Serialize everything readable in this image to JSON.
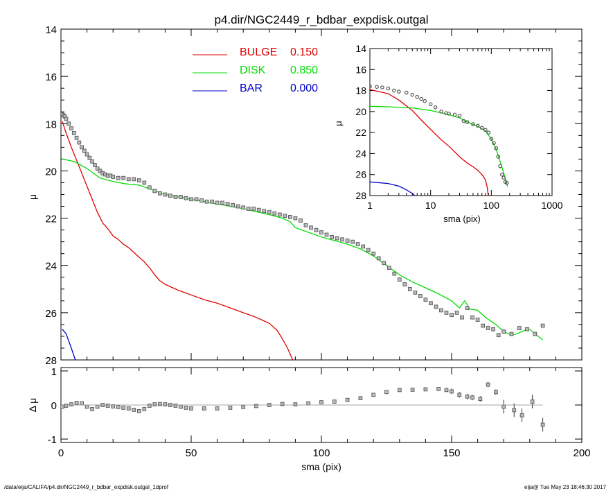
{
  "footer": {
    "path": "/data/eija/CALIFA/p4.dir/NGC2449_r_bdbar_expdisk.outgal_1dprof",
    "stamp": "eija@  Tue May 23 18:46:30 2017"
  },
  "chart_data": [
    {
      "type": "line",
      "title": "p4.dir/NGC2449_r_bdbar_expdisk.outgal",
      "xlabel": "",
      "ylabel": "μ",
      "xlim": [
        0,
        200
      ],
      "ylim": [
        28,
        14
      ],
      "yticks": [
        "14",
        "16",
        "18",
        "20",
        "22",
        "24",
        "26",
        "28"
      ],
      "legend_position": "top-center",
      "legend": [
        {
          "name": "BULGE",
          "value": "0.150",
          "color": "#dd0000"
        },
        {
          "name": "DISK",
          "value": "0.850",
          "color": "#00dd00"
        },
        {
          "name": "BAR",
          "value": "0.000",
          "color": "#0000cc"
        }
      ],
      "series": [
        {
          "name": "BULGE",
          "color": "#dd0000",
          "x": [
            0.5,
            2,
            4,
            6,
            8,
            10,
            12,
            14,
            16,
            18,
            20,
            22,
            24,
            26,
            28,
            30,
            32,
            34,
            36,
            38,
            40,
            45,
            50,
            55,
            60,
            65,
            70,
            75,
            80,
            83,
            85,
            87,
            89
          ],
          "y": [
            17.9,
            18.4,
            19.0,
            19.55,
            20.1,
            20.65,
            21.2,
            21.75,
            22.2,
            22.45,
            22.75,
            22.9,
            23.1,
            23.25,
            23.45,
            23.65,
            23.85,
            24.1,
            24.4,
            24.65,
            24.8,
            25.05,
            25.25,
            25.45,
            25.6,
            25.8,
            26.0,
            26.2,
            26.45,
            26.75,
            27.1,
            27.5,
            28.0
          ]
        },
        {
          "name": "DISK",
          "color": "#00dd00",
          "x": [
            0.5,
            5,
            10,
            15,
            20,
            25,
            30,
            35,
            40,
            50,
            60,
            70,
            80,
            85,
            88,
            90,
            95,
            100,
            105,
            110,
            115,
            120,
            125,
            130,
            135,
            140,
            145,
            150,
            153,
            155,
            157,
            160,
            163,
            165,
            167,
            170,
            173,
            175,
            178,
            180,
            182,
            185
          ],
          "y": [
            19.5,
            19.6,
            19.9,
            20.3,
            20.45,
            20.55,
            20.6,
            20.8,
            21.0,
            21.2,
            21.4,
            21.6,
            21.85,
            22.0,
            22.15,
            22.4,
            22.6,
            22.8,
            22.95,
            23.1,
            23.3,
            23.6,
            24.0,
            24.4,
            24.7,
            24.95,
            25.2,
            25.5,
            25.8,
            25.5,
            25.85,
            25.9,
            26.2,
            26.35,
            26.5,
            26.8,
            26.95,
            26.9,
            26.75,
            26.7,
            26.9,
            27.15
          ]
        },
        {
          "name": "BAR",
          "color": "#0000cc",
          "x": [
            0.5,
            2,
            4,
            5.5
          ],
          "y": [
            26.7,
            26.9,
            27.5,
            28.0
          ]
        },
        {
          "name": "data",
          "color": "#555555",
          "marker": "square",
          "x": [
            0.5,
            1,
            1.5,
            2,
            3,
            4,
            5,
            6,
            7,
            8,
            9,
            10,
            11,
            12,
            13,
            14,
            15,
            16,
            17,
            18,
            19,
            20,
            22,
            24,
            26,
            28,
            30,
            32,
            34,
            36,
            38,
            40,
            42,
            44,
            46,
            48,
            50,
            52,
            54,
            56,
            58,
            60,
            62,
            64,
            66,
            68,
            70,
            72,
            74,
            76,
            78,
            80,
            82,
            84,
            86,
            88,
            90,
            92,
            94,
            96,
            98,
            100,
            102,
            104,
            106,
            108,
            110,
            112,
            114,
            116,
            118,
            120,
            122,
            124,
            126,
            128,
            130,
            132,
            134,
            136,
            138,
            140,
            142,
            144,
            146,
            148,
            150,
            152,
            154,
            156,
            158,
            160,
            162,
            164,
            166,
            168,
            170,
            173,
            176,
            179,
            182,
            185
          ],
          "y": [
            17.6,
            17.65,
            17.7,
            17.8,
            18.0,
            18.2,
            18.4,
            18.6,
            18.8,
            19.0,
            19.15,
            19.3,
            19.45,
            19.6,
            19.75,
            19.9,
            20.0,
            20.1,
            20.15,
            20.2,
            20.2,
            20.25,
            20.3,
            20.3,
            20.35,
            20.35,
            20.4,
            20.5,
            20.7,
            20.85,
            20.95,
            21.0,
            21.05,
            21.1,
            21.1,
            21.15,
            21.2,
            21.2,
            21.25,
            21.3,
            21.3,
            21.35,
            21.35,
            21.4,
            21.45,
            21.5,
            21.55,
            21.6,
            21.6,
            21.65,
            21.7,
            21.75,
            21.8,
            21.85,
            21.9,
            21.95,
            22.0,
            22.1,
            22.3,
            22.4,
            22.5,
            22.6,
            22.7,
            22.8,
            22.85,
            22.9,
            22.95,
            23.0,
            23.1,
            23.2,
            23.35,
            23.5,
            23.7,
            23.9,
            24.1,
            24.35,
            24.6,
            24.8,
            25.0,
            25.15,
            25.3,
            25.45,
            25.6,
            25.75,
            25.9,
            26.0,
            26.1,
            26.0,
            26.2,
            25.8,
            26.2,
            26.3,
            26.55,
            26.65,
            26.7,
            26.95,
            26.8,
            26.9,
            26.65,
            26.7,
            26.9,
            26.55
          ]
        }
      ]
    },
    {
      "type": "line",
      "title": "",
      "xlabel": "sma (pix)",
      "ylabel": "μ",
      "xscale": "log",
      "xlim": [
        1,
        1000
      ],
      "ylim": [
        28,
        14
      ],
      "xticks": [
        "1",
        "10",
        "100",
        "1000"
      ],
      "yticks": [
        "14",
        "16",
        "18",
        "20",
        "22",
        "24",
        "26",
        "28"
      ],
      "position": "inset top-right",
      "series": [
        {
          "name": "BULGE",
          "color": "#dd0000",
          "x": [
            1,
            2,
            3,
            5,
            7,
            10,
            15,
            20,
            30,
            40,
            50,
            60,
            70,
            80,
            85,
            89
          ],
          "y": [
            17.9,
            18.3,
            18.9,
            19.9,
            20.8,
            21.7,
            22.7,
            23.3,
            24.3,
            24.9,
            25.25,
            25.6,
            26.0,
            26.5,
            27.1,
            28.0
          ]
        },
        {
          "name": "DISK",
          "color": "#00dd00",
          "x": [
            1,
            2,
            5,
            10,
            20,
            30,
            40,
            60,
            80,
            100,
            120,
            150,
            185
          ],
          "y": [
            19.5,
            19.55,
            19.65,
            19.9,
            20.3,
            20.6,
            21.0,
            21.4,
            21.85,
            22.6,
            23.6,
            25.3,
            27.15
          ]
        },
        {
          "name": "BAR",
          "color": "#0000cc",
          "x": [
            1,
            2,
            3,
            4,
            5,
            5.5
          ],
          "y": [
            26.7,
            26.85,
            27.1,
            27.45,
            27.8,
            28.0
          ]
        },
        {
          "name": "data",
          "color": "#555555",
          "marker": "circle",
          "x": [
            1,
            1.3,
            1.6,
            2,
            2.5,
            3,
            4,
            5,
            6,
            7,
            8,
            10,
            12,
            15,
            18,
            20,
            25,
            30,
            35,
            40,
            50,
            60,
            70,
            80,
            90,
            100,
            110,
            120,
            130,
            140,
            150,
            160,
            170,
            180
          ],
          "y": [
            17.6,
            17.65,
            17.7,
            17.8,
            18.0,
            18.1,
            18.2,
            18.4,
            18.6,
            18.8,
            19.0,
            19.3,
            19.6,
            20.0,
            20.15,
            20.2,
            20.3,
            20.4,
            20.9,
            21.0,
            21.2,
            21.35,
            21.55,
            21.75,
            22.0,
            22.6,
            23.0,
            23.5,
            24.3,
            25.2,
            26.0,
            26.3,
            26.7,
            26.8
          ]
        }
      ]
    },
    {
      "type": "scatter",
      "title": "",
      "xlabel": "sma (pix)",
      "ylabel": "Δ μ",
      "xlim": [
        0,
        200
      ],
      "ylim": [
        -1.1,
        1.1
      ],
      "xticks": [
        "0",
        "50",
        "100",
        "150",
        "200"
      ],
      "yticks": [
        "1",
        "0",
        "-1"
      ],
      "series": [
        {
          "name": "residual",
          "color": "#555555",
          "marker": "square",
          "x": [
            0.5,
            2,
            4,
            6,
            8,
            10,
            12,
            14,
            16,
            18,
            20,
            22,
            24,
            26,
            28,
            30,
            32,
            34,
            36,
            38,
            40,
            42,
            44,
            46,
            48,
            50,
            55,
            60,
            65,
            70,
            75,
            80,
            85,
            90,
            95,
            100,
            105,
            110,
            115,
            120,
            125,
            130,
            135,
            140,
            145,
            148,
            150,
            153,
            156,
            158,
            161,
            164,
            167,
            170,
            174,
            177,
            181,
            185
          ],
          "y": [
            -0.05,
            -0.02,
            0.02,
            0.06,
            0.05,
            -0.05,
            -0.12,
            -0.05,
            0.0,
            -0.02,
            -0.04,
            -0.06,
            -0.08,
            -0.1,
            -0.14,
            -0.18,
            -0.12,
            -0.02,
            0.02,
            0.03,
            0.02,
            0.0,
            -0.02,
            -0.05,
            -0.08,
            -0.1,
            -0.1,
            -0.1,
            -0.08,
            -0.06,
            -0.03,
            0.0,
            0.03,
            0.02,
            0.05,
            0.08,
            0.1,
            0.15,
            0.2,
            0.3,
            0.38,
            0.44,
            0.45,
            0.46,
            0.47,
            0.44,
            0.4,
            0.3,
            0.25,
            0.22,
            0.18,
            0.6,
            0.38,
            -0.05,
            -0.15,
            -0.3,
            0.1,
            -0.58
          ]
        },
        {
          "name": "zero-line",
          "color": "#888888",
          "x": [
            0,
            185
          ],
          "y": [
            0,
            0
          ]
        }
      ]
    }
  ]
}
